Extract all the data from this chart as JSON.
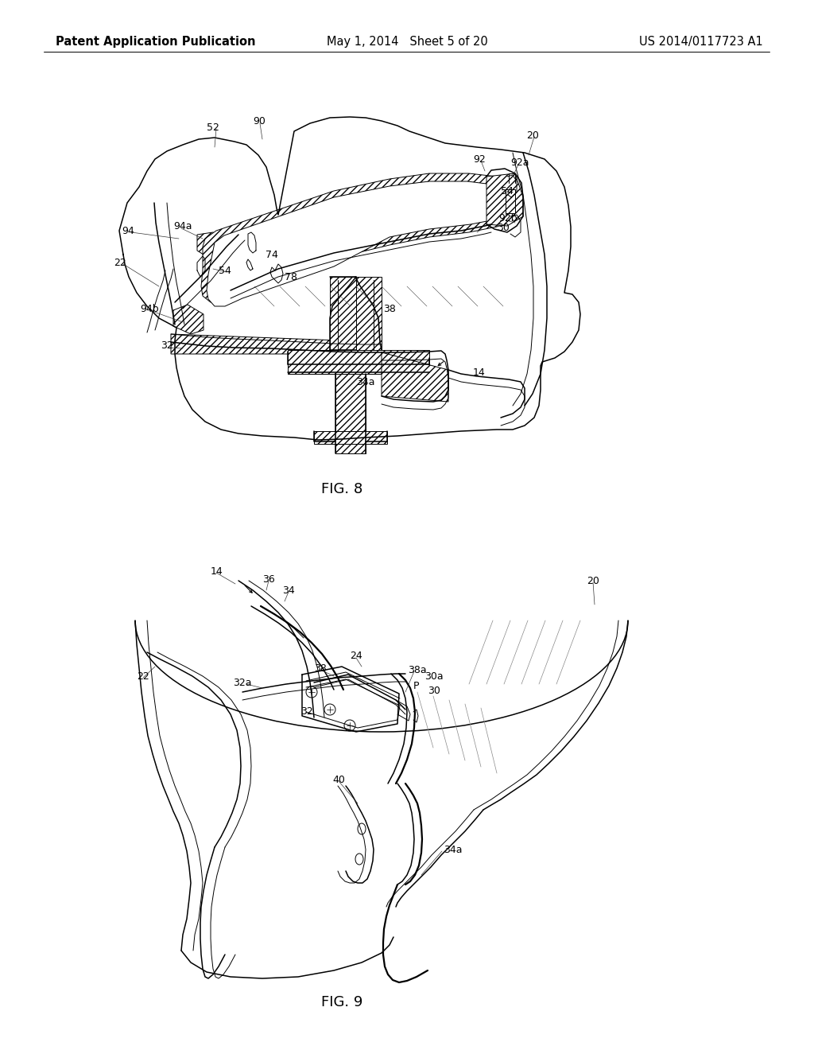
{
  "header_left": "Patent Application Publication",
  "header_middle": "May 1, 2014   Sheet 5 of 20",
  "header_right": "US 2014/0117723 A1",
  "fig8_label": "FIG. 8",
  "fig9_label": "FIG. 9",
  "bg_color": "#ffffff",
  "header_fontsize": 10.5,
  "figlabel_fontsize": 13,
  "annot_fontsize": 9
}
